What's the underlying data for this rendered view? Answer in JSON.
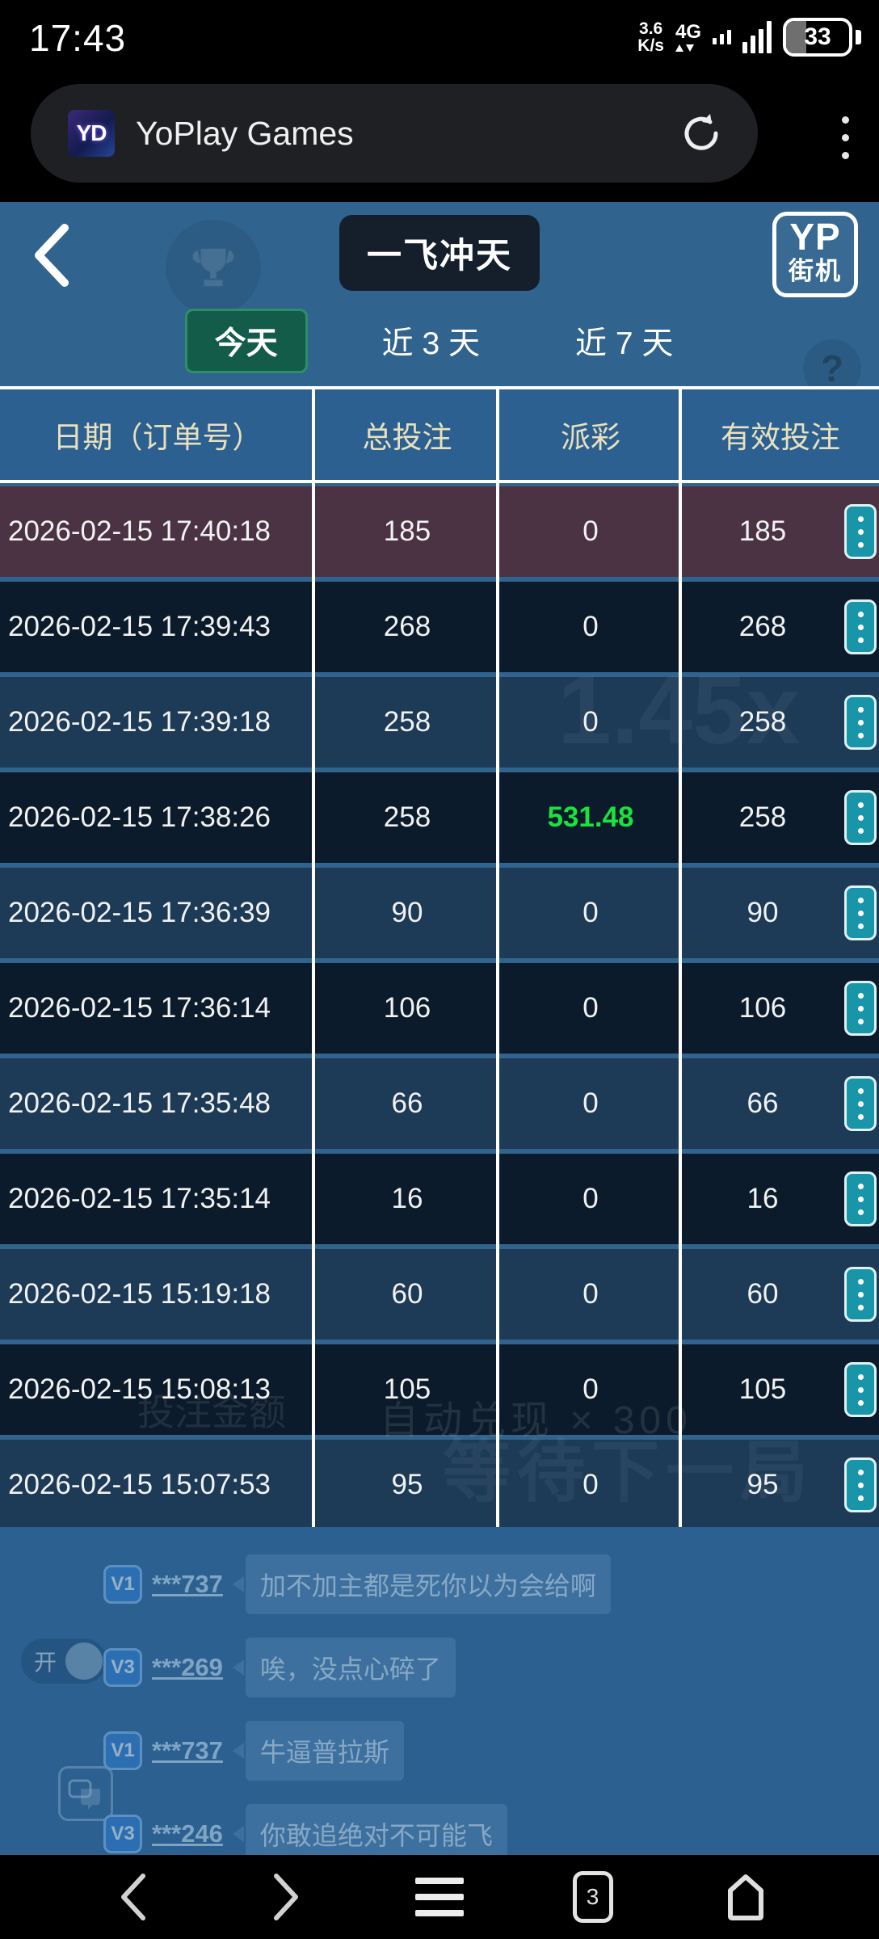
{
  "status_bar": {
    "time": "17:43",
    "net_speed_value": "3.6",
    "net_speed_unit": "K/s",
    "network_type": "4G",
    "battery_percent": "33"
  },
  "browser": {
    "favicon_text": "YD",
    "page_title": "YoPlay Games"
  },
  "header": {
    "title": "一飞冲天",
    "logo_line1": "YP",
    "logo_line2": "街机",
    "help_glyph": "?"
  },
  "tabs": [
    {
      "label": "今天",
      "active": true
    },
    {
      "label": "近 3 天",
      "active": false
    },
    {
      "label": "近 7 天",
      "active": false
    }
  ],
  "table": {
    "headers": [
      "日期（订单号）",
      "总投注",
      "派彩",
      "有效投注"
    ],
    "rows": [
      {
        "date": "2026-02-15 17:40:18",
        "total": "185",
        "payout": "0",
        "valid": "185",
        "highlight": true
      },
      {
        "date": "2026-02-15 17:39:43",
        "total": "268",
        "payout": "0",
        "valid": "268"
      },
      {
        "date": "2026-02-15 17:39:18",
        "total": "258",
        "payout": "0",
        "valid": "258"
      },
      {
        "date": "2026-02-15 17:38:26",
        "total": "258",
        "payout": "531.48",
        "valid": "258",
        "win": true
      },
      {
        "date": "2026-02-15 17:36:39",
        "total": "90",
        "payout": "0",
        "valid": "90"
      },
      {
        "date": "2026-02-15 17:36:14",
        "total": "106",
        "payout": "0",
        "valid": "106"
      },
      {
        "date": "2026-02-15 17:35:48",
        "total": "66",
        "payout": "0",
        "valid": "66"
      },
      {
        "date": "2026-02-15 17:35:14",
        "total": "16",
        "payout": "0",
        "valid": "16"
      },
      {
        "date": "2026-02-15 15:19:18",
        "total": "60",
        "payout": "0",
        "valid": "60"
      },
      {
        "date": "2026-02-15 15:08:13",
        "total": "105",
        "payout": "0",
        "valid": "105"
      },
      {
        "date": "2026-02-15 15:07:53",
        "total": "95",
        "payout": "0",
        "valid": "95"
      }
    ]
  },
  "watermarks": {
    "multiplier": "1.45x",
    "bet_amount": "投注金额",
    "auto_cashout": "自动兑现 ×  300",
    "waiting": "等待下一局"
  },
  "chat": {
    "toggle_label": "开",
    "messages": [
      {
        "badge": "V1",
        "user": "***737",
        "text": "加不加主都是死你以为会给啊"
      },
      {
        "badge": "V3",
        "user": "***269",
        "text": "唉，没点心碎了"
      },
      {
        "badge": "V1",
        "user": "***737",
        "text": "牛逼普拉斯"
      },
      {
        "badge": "V3",
        "user": "***246",
        "text": "你敢追绝对不可能飞"
      }
    ]
  },
  "nav_bar": {
    "tab_count": "3"
  },
  "colors": {
    "page_blue": "#30648f",
    "row_highlight": "#4b3343",
    "win_green": "#1ae23e",
    "action_teal": "#1995aa",
    "tab_active_green": "#125c49",
    "header_text_cream": "#e9e1bd"
  }
}
